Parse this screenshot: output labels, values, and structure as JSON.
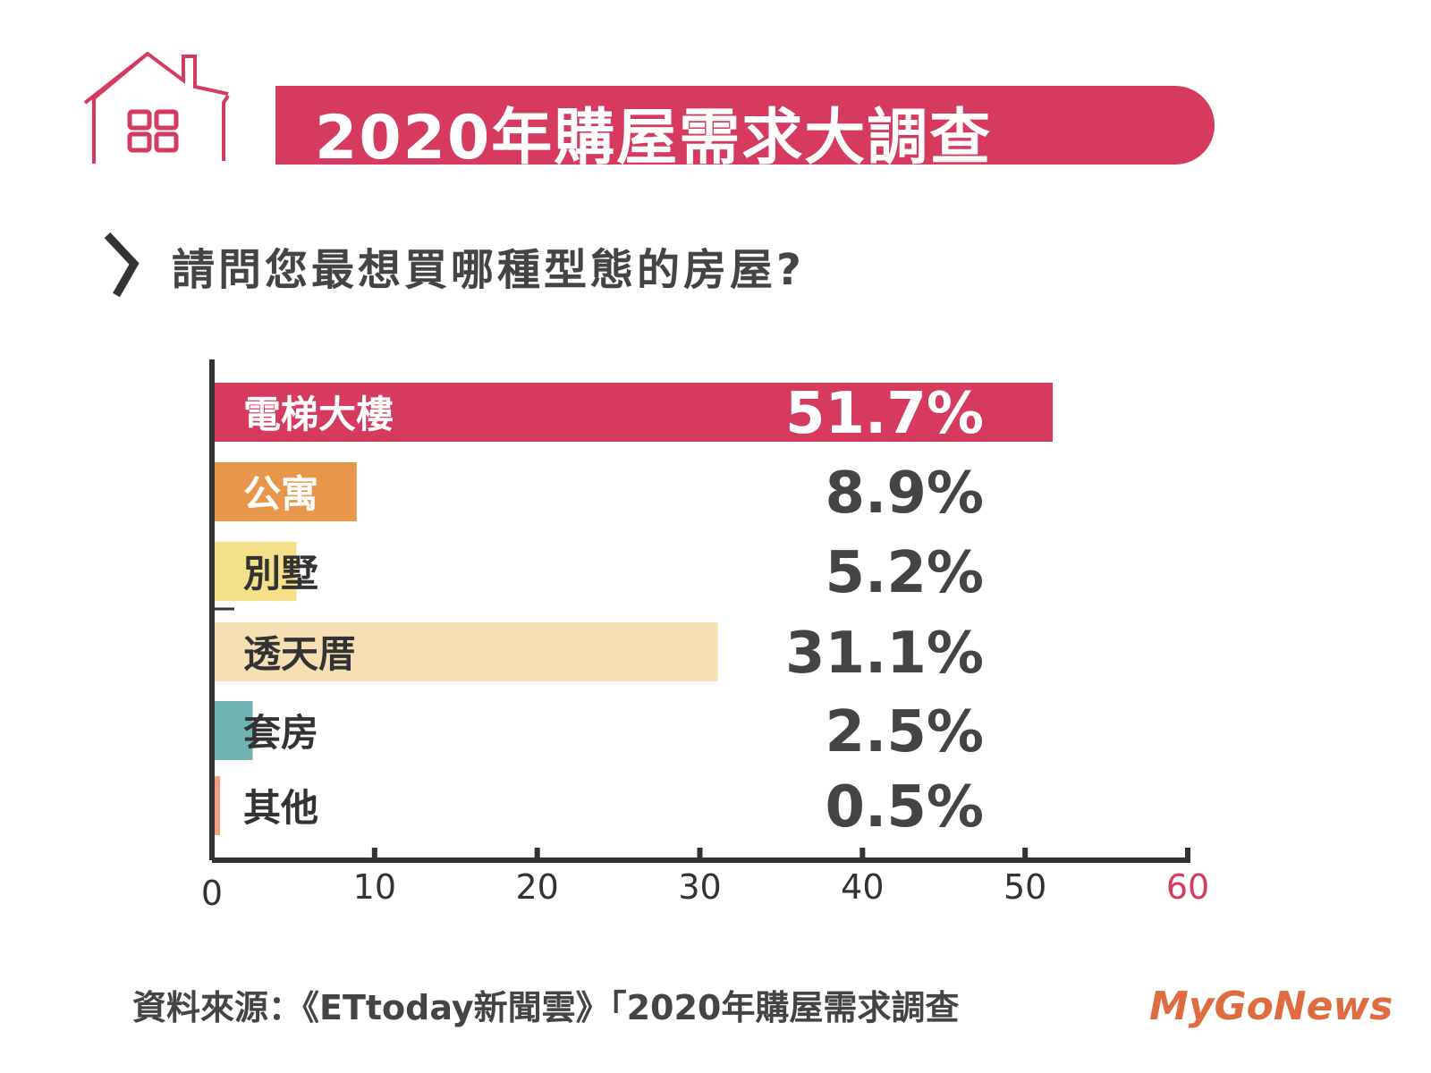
{
  "header": {
    "title": "2020年購屋需求大調查",
    "question": "請問您最想買哪種型態的房屋?"
  },
  "chart_data": {
    "type": "bar",
    "orientation": "horizontal",
    "categories": [
      "電梯大樓",
      "公寓",
      "別墅",
      "透天厝",
      "套房",
      "其他"
    ],
    "values": [
      51.7,
      8.9,
      5.2,
      31.1,
      2.5,
      0.5
    ],
    "value_labels": [
      "51.7%",
      "8.9%",
      "5.2%",
      "31.1%",
      "2.5%",
      "0.5%"
    ],
    "colors": [
      "#d63a5e",
      "#e8964a",
      "#f5e08a",
      "#f5dfb3",
      "#6fb3b3",
      "#f0a080"
    ],
    "xlim": [
      0,
      60
    ],
    "xticks": [
      "0",
      "10",
      "20",
      "30",
      "40",
      "50",
      "60"
    ],
    "title": "請問您最想買哪種型態的房屋?"
  },
  "footer": {
    "source": "資料來源：《ETtoday新聞雲》「2020年購屋需求調查",
    "watermark": "MyGoNews"
  }
}
